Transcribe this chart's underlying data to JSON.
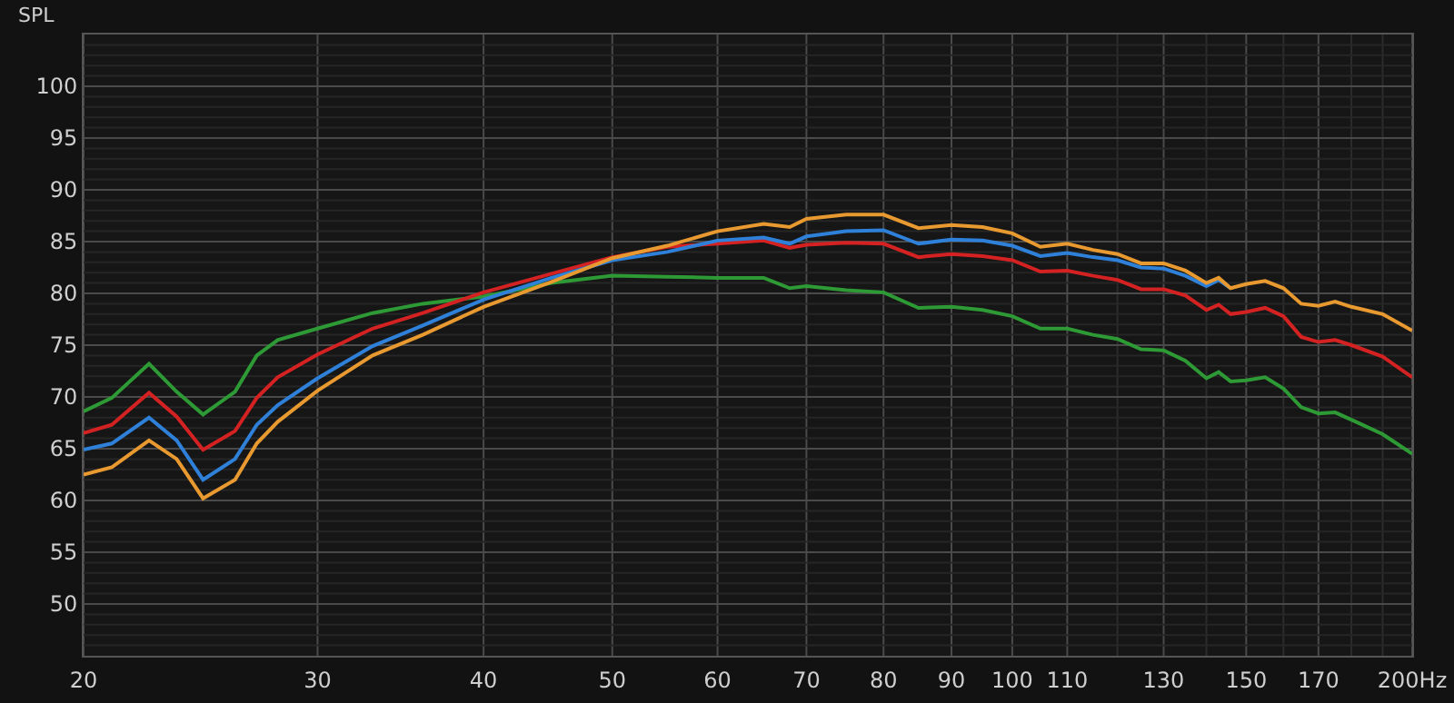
{
  "chart_data": {
    "type": "line",
    "ylabel": "SPL",
    "log": "x",
    "grid": true,
    "marker": "none",
    "line_style": "solid",
    "x": [
      20,
      21,
      22.4,
      23.5,
      24.6,
      26,
      27,
      28,
      30,
      33,
      36,
      40,
      45,
      50,
      55,
      60,
      65,
      68,
      70,
      75,
      80,
      85,
      90,
      95,
      100,
      105,
      110,
      115,
      120,
      125,
      130,
      135,
      140,
      143,
      146,
      150,
      155,
      160,
      165,
      170,
      175,
      180,
      190,
      200
    ],
    "series": [
      {
        "color": "#2e9a35",
        "values": [
          68.6,
          69.9,
          73.2,
          70.5,
          68.3,
          70.5,
          74.0,
          75.5,
          76.6,
          78.1,
          79.0,
          79.7,
          81.0,
          81.7,
          81.6,
          81.5,
          81.5,
          80.5,
          80.7,
          80.3,
          80.1,
          78.6,
          78.7,
          78.4,
          77.8,
          76.6,
          76.6,
          76.0,
          75.6,
          74.6,
          74.5,
          73.5,
          71.8,
          72.4,
          71.5,
          71.6,
          71.9,
          70.8,
          69.0,
          68.4,
          68.5,
          67.8,
          66.4,
          64.5
        ]
      },
      {
        "color": "#d42222",
        "values": [
          66.5,
          67.3,
          70.4,
          68.1,
          64.9,
          66.7,
          69.9,
          71.9,
          74.1,
          76.6,
          78.1,
          80.1,
          81.9,
          83.5,
          84.5,
          84.8,
          85.1,
          84.4,
          84.7,
          84.9,
          84.8,
          83.5,
          83.8,
          83.6,
          83.2,
          82.1,
          82.2,
          81.7,
          81.3,
          80.4,
          80.4,
          79.8,
          78.4,
          78.9,
          78.0,
          78.2,
          78.6,
          77.8,
          75.8,
          75.3,
          75.5,
          75.0,
          73.9,
          71.9
        ]
      },
      {
        "color": "#2f80d8",
        "values": [
          64.9,
          65.5,
          68.0,
          65.8,
          62.0,
          64.0,
          67.3,
          69.2,
          71.8,
          74.9,
          76.9,
          79.4,
          81.5,
          83.2,
          84.0,
          85.1,
          85.4,
          84.8,
          85.5,
          86.0,
          86.1,
          84.8,
          85.2,
          85.1,
          84.6,
          83.6,
          83.9,
          83.5,
          83.2,
          82.5,
          82.4,
          81.7,
          80.7,
          81.3,
          80.5,
          null,
          null,
          null,
          null,
          null,
          null,
          null,
          null,
          null
        ]
      },
      {
        "color": "#e89a30",
        "values": [
          62.5,
          63.2,
          65.8,
          64.0,
          60.2,
          62.0,
          65.5,
          67.6,
          70.6,
          74.0,
          76.0,
          78.7,
          81.1,
          83.4,
          84.6,
          86.0,
          86.7,
          86.4,
          87.2,
          87.6,
          87.6,
          86.3,
          86.6,
          86.4,
          85.8,
          84.5,
          84.8,
          84.2,
          83.8,
          82.9,
          82.9,
          82.2,
          81.0,
          81.5,
          80.5,
          80.9,
          81.2,
          80.5,
          79.0,
          78.8,
          79.2,
          78.7,
          78.0,
          76.4
        ]
      }
    ],
    "xlim": [
      20,
      200
    ],
    "xticks": [
      20,
      30,
      40,
      50,
      60,
      70,
      80,
      90,
      100,
      110,
      {
        "value": 120,
        "label": null
      },
      130,
      {
        "value": 140,
        "label": null
      },
      150,
      {
        "value": 160,
        "label": null
      },
      170,
      {
        "value": 180,
        "label": null
      },
      {
        "value": 190,
        "label": null
      },
      {
        "value": 200,
        "label": "200Hz"
      }
    ],
    "ylim": [
      45,
      105
    ],
    "yticks": [
      {
        "value": 46,
        "label": null
      },
      {
        "value": 47,
        "label": null
      },
      {
        "value": 48,
        "label": null
      },
      {
        "value": 49,
        "label": null
      },
      50,
      {
        "value": 51,
        "label": null
      },
      {
        "value": 52,
        "label": null
      },
      {
        "value": 53,
        "label": null
      },
      {
        "value": 54,
        "label": null
      },
      55,
      {
        "value": 56,
        "label": null
      },
      {
        "value": 57,
        "label": null
      },
      {
        "value": 58,
        "label": null
      },
      {
        "value": 59,
        "label": null
      },
      60,
      {
        "value": 61,
        "label": null
      },
      {
        "value": 62,
        "label": null
      },
      {
        "value": 63,
        "label": null
      },
      {
        "value": 64,
        "label": null
      },
      65,
      {
        "value": 66,
        "label": null
      },
      {
        "value": 67,
        "label": null
      },
      {
        "value": 68,
        "label": null
      },
      {
        "value": 69,
        "label": null
      },
      70,
      {
        "value": 71,
        "label": null
      },
      {
        "value": 72,
        "label": null
      },
      {
        "value": 73,
        "label": null
      },
      {
        "value": 74,
        "label": null
      },
      75,
      {
        "value": 76,
        "label": null
      },
      {
        "value": 77,
        "label": null
      },
      {
        "value": 78,
        "label": null
      },
      {
        "value": 79,
        "label": null
      },
      80,
      {
        "value": 81,
        "label": null
      },
      {
        "value": 82,
        "label": null
      },
      {
        "value": 83,
        "label": null
      },
      {
        "value": 84,
        "label": null
      },
      85,
      {
        "value": 86,
        "label": null
      },
      {
        "value": 87,
        "label": null
      },
      {
        "value": 88,
        "label": null
      },
      {
        "value": 89,
        "label": null
      },
      90,
      {
        "value": 91,
        "label": null
      },
      {
        "value": 92,
        "label": null
      },
      {
        "value": 93,
        "label": null
      },
      {
        "value": 94,
        "label": null
      },
      95,
      {
        "value": 96,
        "label": null
      },
      {
        "value": 97,
        "label": null
      },
      {
        "value": 98,
        "label": null
      },
      {
        "value": 99,
        "label": null
      },
      100,
      {
        "value": 101,
        "label": null
      },
      {
        "value": 102,
        "label": null
      },
      {
        "value": 103,
        "label": null
      },
      {
        "value": 104,
        "label": null
      }
    ]
  }
}
